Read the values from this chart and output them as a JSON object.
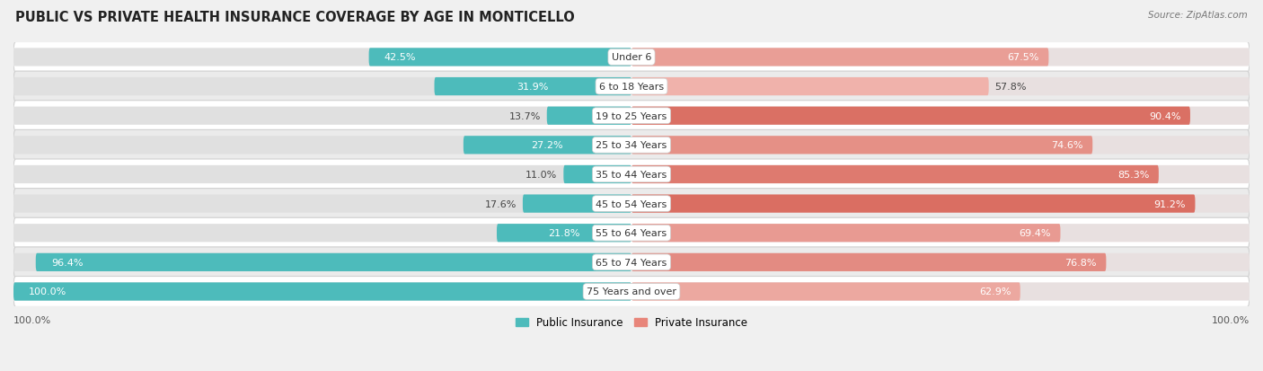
{
  "title": "PUBLIC VS PRIVATE HEALTH INSURANCE COVERAGE BY AGE IN MONTICELLO",
  "source": "Source: ZipAtlas.com",
  "categories": [
    "Under 6",
    "6 to 18 Years",
    "19 to 25 Years",
    "25 to 34 Years",
    "35 to 44 Years",
    "45 to 54 Years",
    "55 to 64 Years",
    "65 to 74 Years",
    "75 Years and over"
  ],
  "public_values": [
    42.5,
    31.9,
    13.7,
    27.2,
    11.0,
    17.6,
    21.8,
    96.4,
    100.0
  ],
  "private_values": [
    67.5,
    57.8,
    90.4,
    74.6,
    85.3,
    91.2,
    69.4,
    76.8,
    62.9
  ],
  "public_color": "#4DBBBB",
  "private_colors": [
    "#E8857A",
    "#F0A89F",
    "#D9574A",
    "#E07870",
    "#D65F52",
    "#D45C4F",
    "#EFA099",
    "#F0A89F",
    "#F5BCB6"
  ],
  "private_base_color": "#E8857A",
  "row_bg_odd": "#f5f5f5",
  "row_bg_even": "#eaeaea",
  "bar_height": 0.62,
  "title_fontsize": 10.5,
  "value_fontsize": 8,
  "legend_fontsize": 8.5,
  "source_fontsize": 7.5,
  "x_axis_left": "100.0%",
  "x_axis_right": "100.0%"
}
